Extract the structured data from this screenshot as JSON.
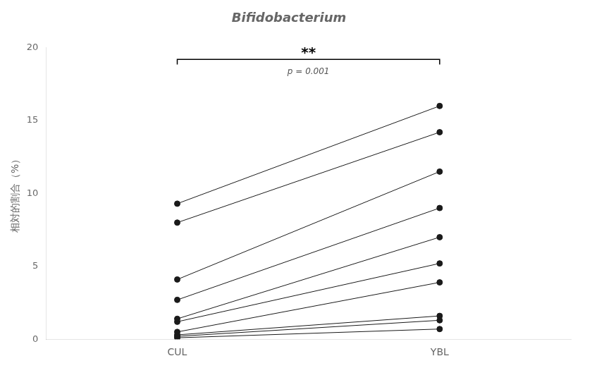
{
  "chart_data": {
    "type": "line",
    "title": "Bifidobacterium",
    "ylabel": "相対的割合（%）",
    "categories": [
      "CUL",
      "YBL"
    ],
    "series": [
      {
        "values": [
          9.3,
          16.0
        ]
      },
      {
        "values": [
          8.0,
          14.2
        ]
      },
      {
        "values": [
          4.1,
          11.5
        ]
      },
      {
        "values": [
          2.7,
          9.0
        ]
      },
      {
        "values": [
          1.4,
          7.0
        ]
      },
      {
        "values": [
          1.2,
          5.2
        ]
      },
      {
        "values": [
          0.5,
          3.9
        ]
      },
      {
        "values": [
          0.3,
          1.6
        ]
      },
      {
        "values": [
          0.2,
          1.3
        ]
      },
      {
        "values": [
          0.1,
          0.7
        ]
      }
    ],
    "color": "#1a1a1a",
    "marker": "circle",
    "ylim": [
      0,
      20
    ],
    "yticks": [
      0,
      5,
      10,
      15,
      20
    ],
    "grid": false,
    "annotations": [
      {
        "from": "CUL",
        "to": "YBL",
        "y": 19.2,
        "text": "**",
        "note": "p = 0.001"
      }
    ]
  }
}
